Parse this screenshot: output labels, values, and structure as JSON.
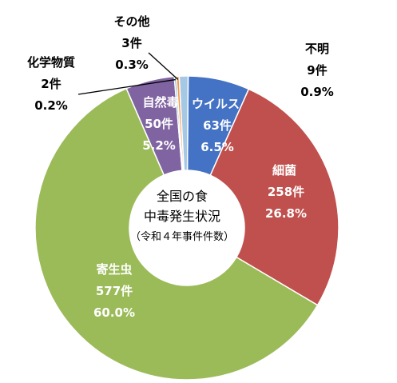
{
  "chart_data": {
    "type": "pie",
    "style": "donut",
    "title": "全国の食中毒発生状況",
    "subtitle": "（令和４年事件件数）",
    "slices": [
      {
        "name": "ウイルス",
        "count": "63件",
        "percent": "6.5%",
        "value": 63,
        "color": "#4472c4"
      },
      {
        "name": "細菌",
        "count": "258件",
        "percent": "26.8%",
        "value": 258,
        "color": "#c0504d"
      },
      {
        "name": "寄生虫",
        "count": "577件",
        "percent": "60.0%",
        "value": 577,
        "color": "#9bbb59"
      },
      {
        "name": "自然毒",
        "count": "50件",
        "percent": "5.2%",
        "value": 50,
        "color": "#8064a2"
      },
      {
        "name": "化学物質",
        "count": "2件",
        "percent": "0.2%",
        "value": 2,
        "color": "#4bacc6"
      },
      {
        "name": "その他",
        "count": "3件",
        "percent": "0.3%",
        "value": 3,
        "color": "#f79646"
      },
      {
        "name": "不明",
        "count": "9件",
        "percent": "0.9%",
        "value": 9,
        "color": "#a5c8e4"
      }
    ]
  }
}
